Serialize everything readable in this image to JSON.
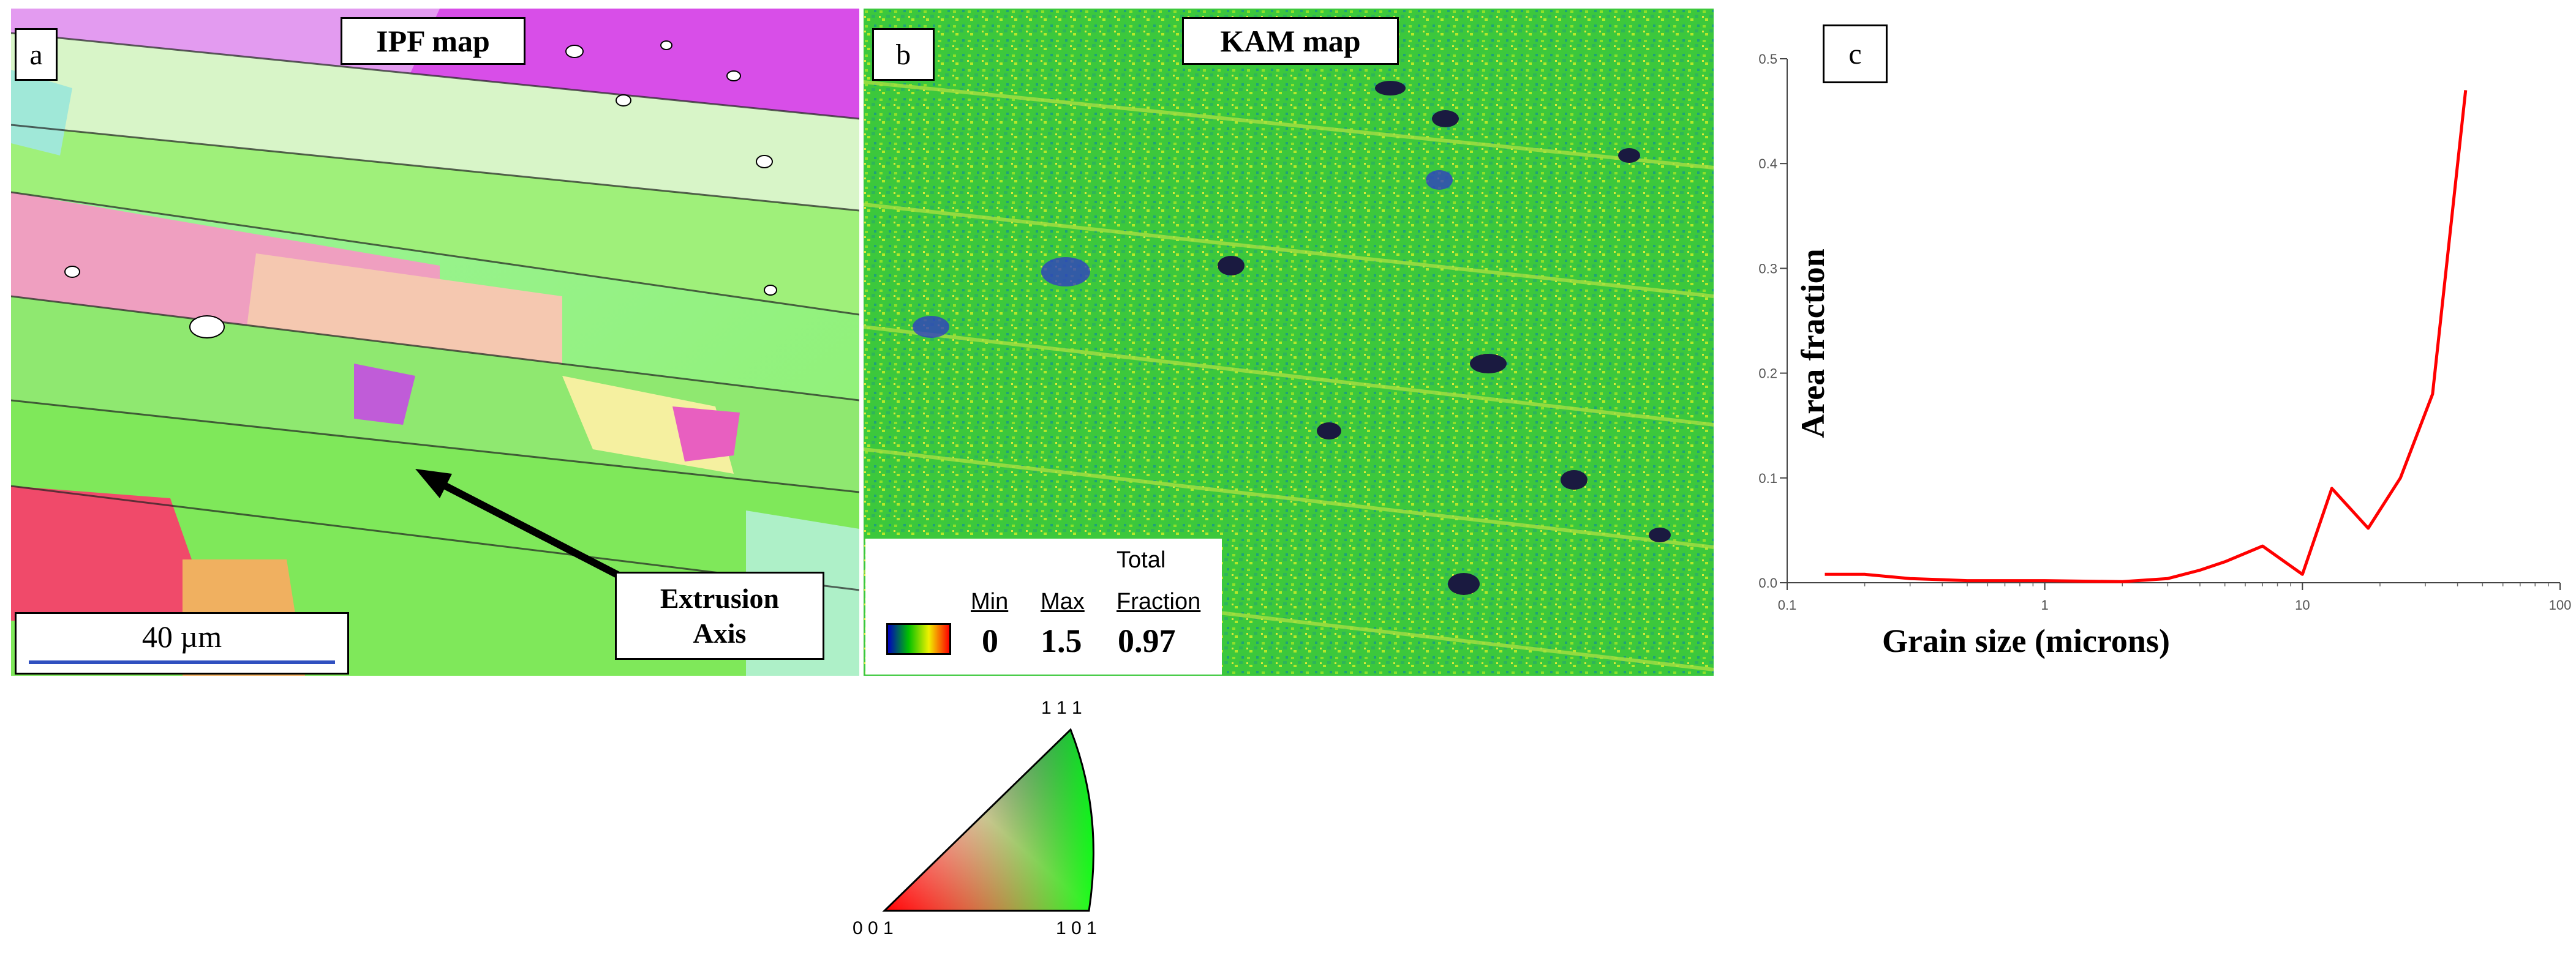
{
  "panel_a": {
    "letter": "a",
    "title": "IPF map",
    "scale_bar": "40 µm",
    "axis_label_line1": "Extrusion",
    "axis_label_line2": "Axis"
  },
  "panel_b": {
    "letter": "b",
    "title": "KAM map",
    "legend": {
      "min_header": "Min",
      "max_header": "Max",
      "total_header_line1": "Total",
      "total_header_line2": "Fraction",
      "min_value": "0",
      "max_value": "1.5",
      "total_value": "0.97"
    }
  },
  "ipf_triangle": {
    "top_label": "1 1 1",
    "left_label": "0 0 1",
    "right_label": "1 0 1"
  },
  "panel_c": {
    "letter": "c"
  },
  "chart_data": {
    "type": "line",
    "title": "",
    "xlabel": "Grain size (microns)",
    "ylabel": "Area fraction",
    "xscale": "log",
    "xlim": [
      0.1,
      100
    ],
    "ylim": [
      0.0,
      0.5
    ],
    "x_ticks": [
      "0.1",
      "1",
      "10",
      "100"
    ],
    "y_ticks": [
      "0.0",
      "0.1",
      "0.2",
      "0.3",
      "0.4",
      "0.5"
    ],
    "series": [
      {
        "color": "#ff0000",
        "x": [
          0.14,
          0.2,
          0.3,
          0.5,
          1.0,
          2.0,
          3.0,
          4.0,
          5.0,
          7.0,
          10.0,
          13.0,
          18.0,
          24.0,
          32.0,
          43.0
        ],
        "y": [
          0.008,
          0.008,
          0.004,
          0.002,
          0.002,
          0.001,
          0.004,
          0.012,
          0.02,
          0.035,
          0.008,
          0.09,
          0.052,
          0.1,
          0.18,
          0.47
        ]
      }
    ],
    "grid": false,
    "legend": "none"
  }
}
